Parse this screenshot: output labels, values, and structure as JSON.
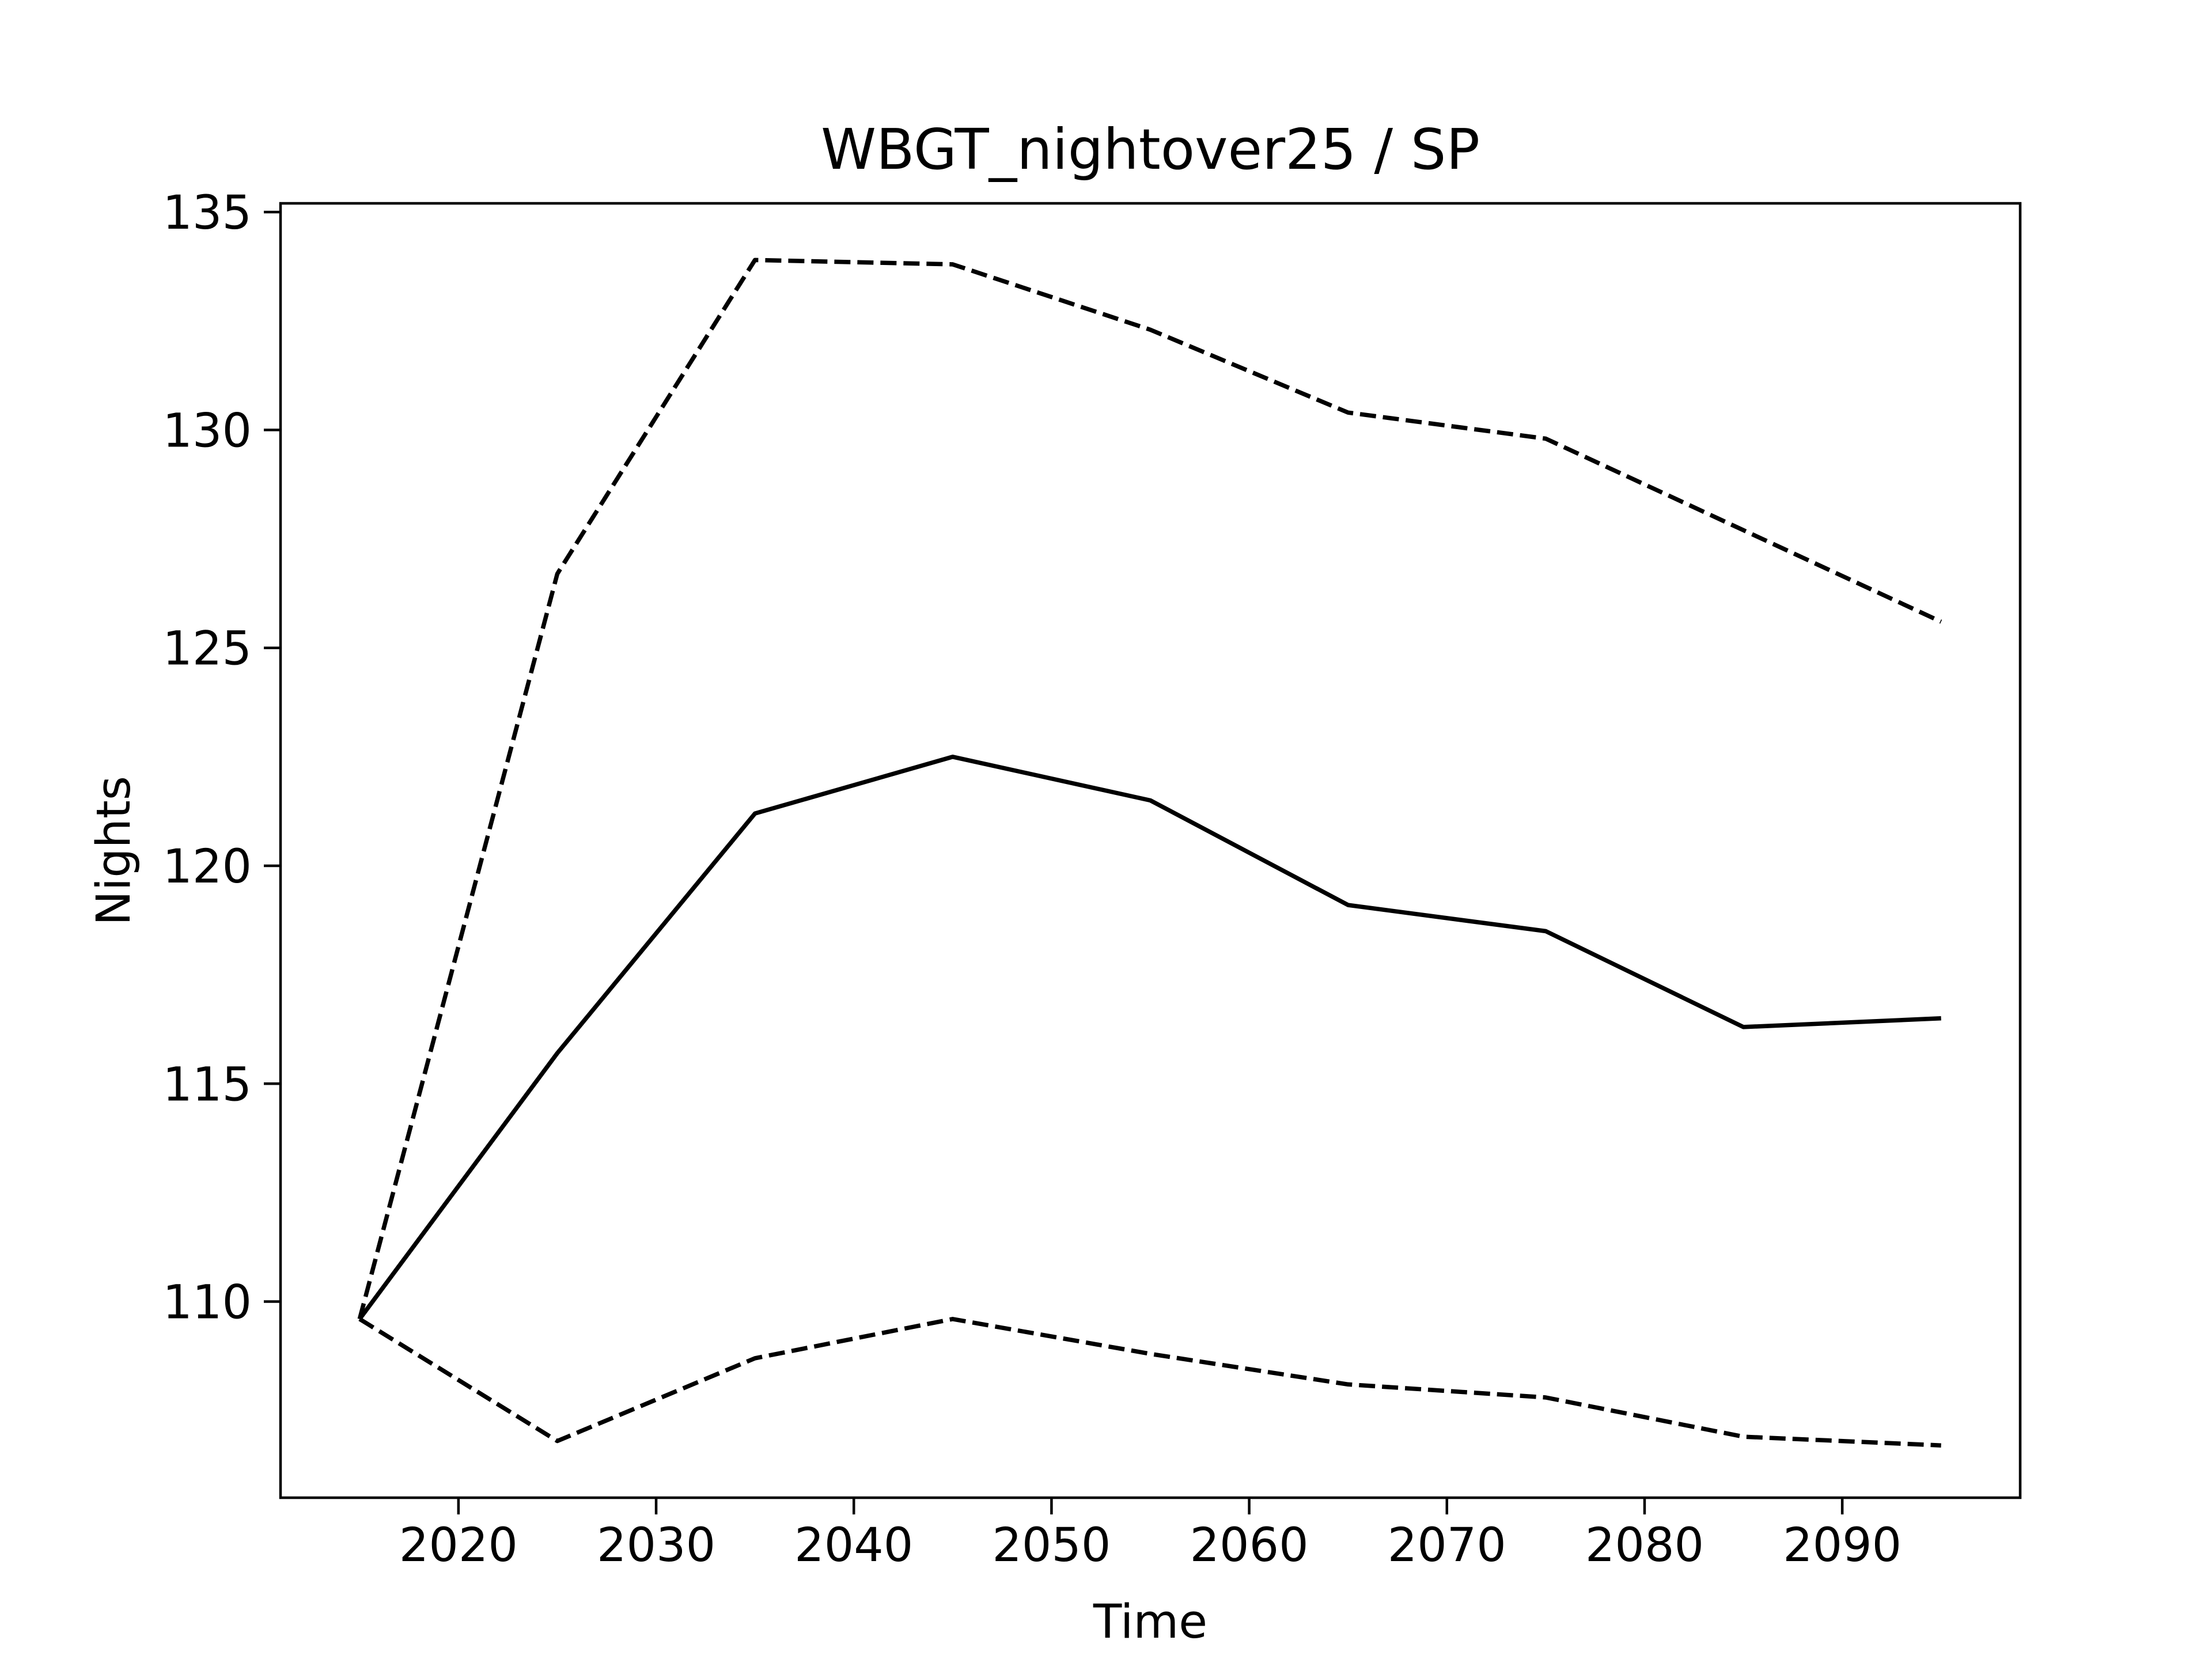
{
  "chart_data": {
    "type": "line",
    "title": "WBGT_nightover25 / SP",
    "xlabel": "Time",
    "ylabel": "Nights",
    "xlim": [
      2011.0,
      2099.0
    ],
    "ylim": [
      105.5,
      135.2
    ],
    "x_ticks": [
      2020,
      2030,
      2040,
      2050,
      2060,
      2070,
      2080,
      2090
    ],
    "y_ticks": [
      110,
      115,
      120,
      125,
      130,
      135
    ],
    "x_tick_labels": [
      "2020",
      "2030",
      "2040",
      "2050",
      "2060",
      "2070",
      "2080",
      "2090"
    ],
    "y_tick_labels": [
      "110",
      "115",
      "120",
      "125",
      "130",
      "135"
    ],
    "grid": false,
    "legend": "none",
    "x": [
      2015,
      2025,
      2035,
      2045,
      2055,
      2065,
      2075,
      2085,
      2095
    ],
    "series": [
      {
        "style": "dashed",
        "color": "#000000",
        "values": [
          109.6,
          126.7,
          133.9,
          133.8,
          132.3,
          130.4,
          129.8,
          127.7,
          125.6
        ]
      },
      {
        "style": "solid",
        "color": "#000000",
        "values": [
          109.6,
          115.7,
          121.2,
          122.5,
          121.5,
          119.1,
          118.5,
          116.3,
          116.5
        ]
      },
      {
        "style": "dashed",
        "color": "#000000",
        "values": [
          109.6,
          106.8,
          108.7,
          109.6,
          108.8,
          108.1,
          107.8,
          106.9,
          106.7
        ]
      }
    ]
  }
}
